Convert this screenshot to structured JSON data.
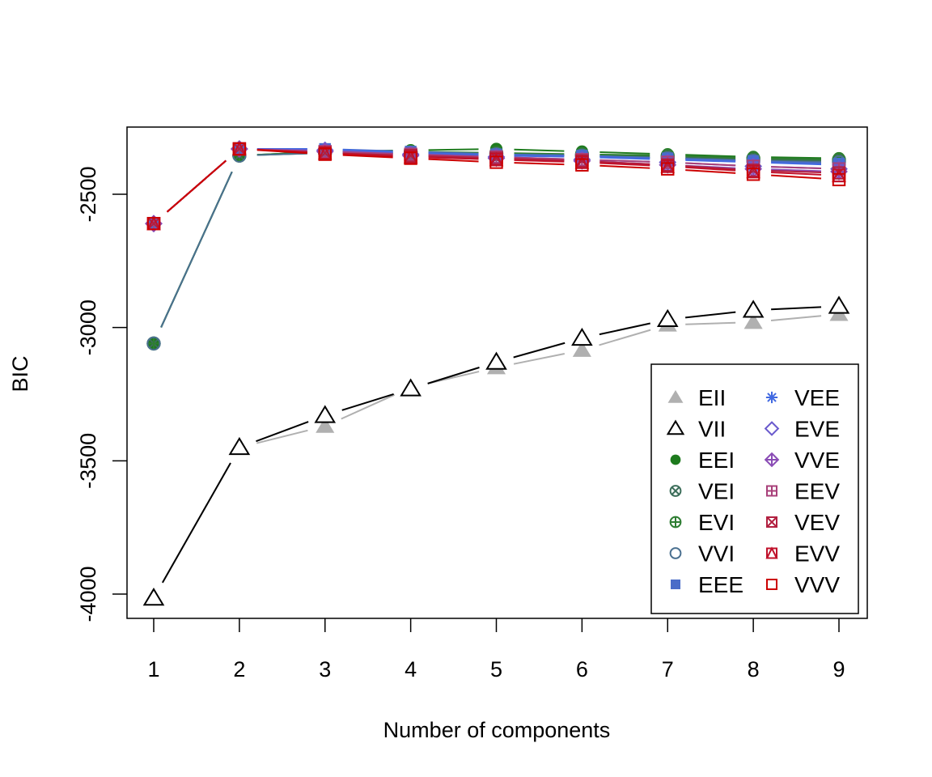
{
  "chart_data": {
    "type": "line",
    "title": "",
    "xlabel": "Number of components",
    "ylabel": "BIC",
    "x": [
      1,
      2,
      3,
      4,
      5,
      6,
      7,
      8,
      9
    ],
    "xlim": [
      0.69,
      9.33
    ],
    "ylim": [
      -4090,
      -2250
    ],
    "xticks": [
      "1",
      "2",
      "3",
      "4",
      "5",
      "6",
      "7",
      "8",
      "9"
    ],
    "yticks": [
      {
        "value": -2500,
        "label": "-2500"
      },
      {
        "value": -3000,
        "label": "-3000"
      },
      {
        "value": -3500,
        "label": "-3500"
      },
      {
        "value": -4000,
        "label": "-4000"
      }
    ],
    "grid": false,
    "legend_position": "bottom-right",
    "series": [
      {
        "name": "EII",
        "color": "#B0B0B0",
        "symbol": "triangle-filled",
        "values": [
          -4015,
          -3450,
          -3370,
          -3225,
          -3150,
          -3085,
          -2990,
          -2980,
          -2950
        ]
      },
      {
        "name": "VII",
        "color": "#000000",
        "symbol": "triangle-open",
        "values": [
          -4015,
          -3450,
          -3330,
          -3230,
          -3130,
          -3040,
          -2970,
          -2935,
          -2920
        ]
      },
      {
        "name": "EEI",
        "color": "#1E7B1E",
        "symbol": "circle-filled",
        "values": [
          -3060,
          -2355,
          -2340,
          -2335,
          -2330,
          -2340,
          -2350,
          -2360,
          -2365
        ]
      },
      {
        "name": "VEI",
        "color": "#3C6E5A",
        "symbol": "circle-x",
        "values": [
          -3060,
          -2355,
          -2345,
          -2345,
          -2350,
          -2355,
          -2360,
          -2370,
          -2375
        ]
      },
      {
        "name": "EVI",
        "color": "#2E7D32",
        "symbol": "circle-plus",
        "values": [
          -3060,
          -2355,
          -2340,
          -2340,
          -2345,
          -2350,
          -2355,
          -2365,
          -2370
        ]
      },
      {
        "name": "VVI",
        "color": "#4A7090",
        "symbol": "circle-open",
        "values": [
          -3060,
          -2355,
          -2345,
          -2345,
          -2350,
          -2355,
          -2365,
          -2375,
          -2380
        ]
      },
      {
        "name": "EEE",
        "color": "#4A6CC8",
        "symbol": "square-filled",
        "values": [
          -2610,
          -2330,
          -2330,
          -2340,
          -2350,
          -2355,
          -2365,
          -2375,
          -2385
        ]
      },
      {
        "name": "VEE",
        "color": "#4169E1",
        "symbol": "asterisk",
        "values": [
          -2610,
          -2330,
          -2330,
          -2345,
          -2355,
          -2360,
          -2370,
          -2380,
          -2390
        ]
      },
      {
        "name": "EVE",
        "color": "#6A5ACD",
        "symbol": "diamond-open",
        "values": [
          -2610,
          -2330,
          -2335,
          -2350,
          -2360,
          -2370,
          -2380,
          -2395,
          -2405
        ]
      },
      {
        "name": "VVE",
        "color": "#8A4CB5",
        "symbol": "diamond-plus",
        "values": [
          -2610,
          -2330,
          -2340,
          -2355,
          -2365,
          -2375,
          -2390,
          -2405,
          -2415
        ]
      },
      {
        "name": "EEV",
        "color": "#A8407A",
        "symbol": "square-plus",
        "values": [
          -2610,
          -2330,
          -2340,
          -2350,
          -2360,
          -2370,
          -2380,
          -2395,
          -2405
        ]
      },
      {
        "name": "VEV",
        "color": "#B22040",
        "symbol": "square-x",
        "values": [
          -2610,
          -2330,
          -2345,
          -2355,
          -2365,
          -2375,
          -2390,
          -2410,
          -2420
        ]
      },
      {
        "name": "EVV",
        "color": "#C0102A",
        "symbol": "square-triangle",
        "values": [
          -2610,
          -2330,
          -2345,
          -2360,
          -2370,
          -2380,
          -2395,
          -2415,
          -2430
        ]
      },
      {
        "name": "VVV",
        "color": "#CC0000",
        "symbol": "square-open",
        "values": [
          -2610,
          -2330,
          -2350,
          -2365,
          -2380,
          -2390,
          -2405,
          -2425,
          -2445
        ]
      }
    ]
  }
}
